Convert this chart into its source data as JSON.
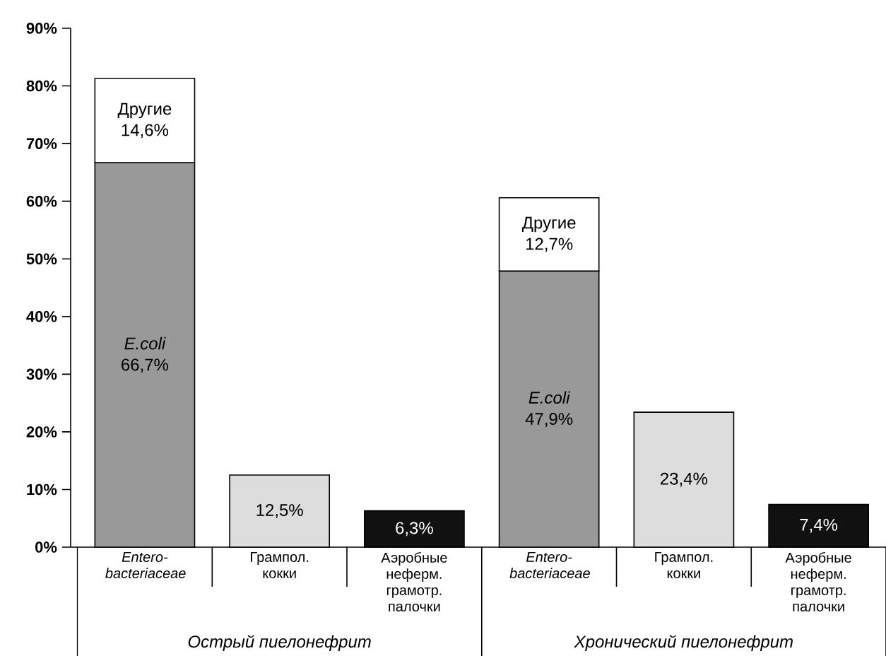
{
  "chart_data": {
    "type": "bar",
    "stacked": true,
    "categories": [
      "*Entero-bacteriaceae*",
      "Грампол. кокки",
      "Аэробные неферм. грамотр. палочки",
      "*Entero-bacteriaceae*",
      "Грампол. кокки",
      "Аэробные неферм. грамотр. палочки"
    ],
    "series": [
      {
        "colors": [
          "#999999",
          "#dddddd",
          "#111111",
          "#999999",
          "#dddddd",
          "#111111"
        ],
        "values": [
          66.7,
          12.5,
          6.3,
          47.9,
          23.4,
          7.4
        ],
        "value_labels": [
          "*E.coli* 66,7%",
          "12,5%",
          "6,3%",
          "*E.coli* 47,9%",
          "23,4%",
          "7,4%"
        ]
      },
      {
        "name": "Другие",
        "color": "#ffffff",
        "values": [
          14.6,
          null,
          null,
          12.7,
          null,
          null
        ],
        "value_labels": [
          "14,6%",
          null,
          null,
          "12,7%",
          null,
          null
        ]
      }
    ],
    "ylim": [
      0,
      90
    ],
    "yticks": [
      {
        "value": 0,
        "label": "0%"
      },
      {
        "value": 10,
        "label": "10%"
      },
      {
        "value": 20,
        "label": "20%"
      },
      {
        "value": 30,
        "label": "30%"
      },
      {
        "value": 40,
        "label": "40%"
      },
      {
        "value": 50,
        "label": "50%"
      },
      {
        "value": 60,
        "label": "60%"
      },
      {
        "value": 70,
        "label": "70%"
      },
      {
        "value": 80,
        "label": "80%"
      },
      {
        "value": 90,
        "label": "90%"
      }
    ],
    "annotations": [
      "Острый пиелонефрит",
      "Хронический пиелонефрит"
    ]
  }
}
